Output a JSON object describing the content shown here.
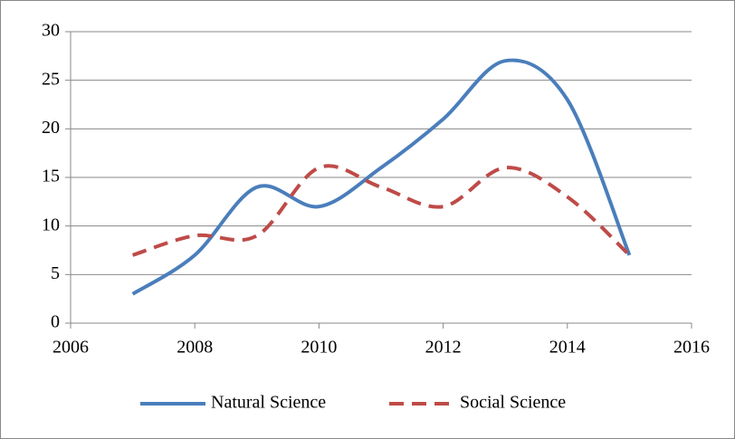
{
  "chart_data": {
    "type": "line",
    "x": [
      2007,
      2008,
      2009,
      2010,
      2011,
      2012,
      2013,
      2014,
      2015
    ],
    "series": [
      {
        "name": "Natural Science",
        "color": "#4a7ebb",
        "dash": false,
        "values": [
          3,
          7,
          14,
          12,
          16,
          21,
          27,
          23,
          7
        ]
      },
      {
        "name": "Social Science",
        "color": "#be4b48",
        "dash": true,
        "values": [
          7,
          9,
          9,
          16,
          14,
          12,
          16,
          13,
          7
        ]
      }
    ],
    "xlim": [
      2006,
      2016
    ],
    "xticks": [
      2006,
      2008,
      2010,
      2012,
      2014,
      2016
    ],
    "ylim": [
      0,
      30
    ],
    "yticks": [
      0,
      5,
      10,
      15,
      20,
      25,
      30
    ],
    "grid": true,
    "smooth": true,
    "legend": "bottom"
  }
}
